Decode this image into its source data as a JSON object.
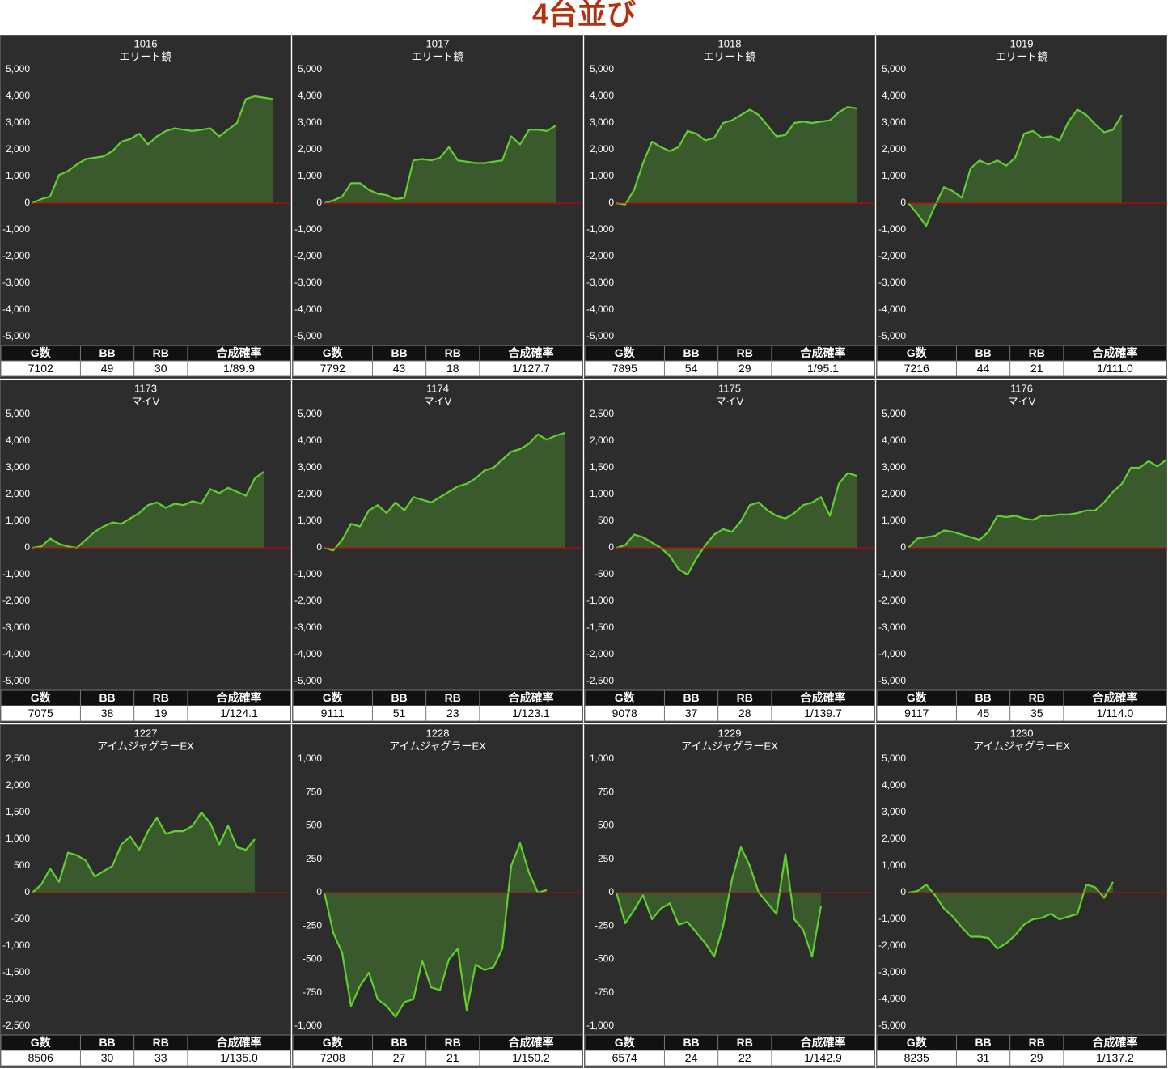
{
  "title": "4台並び",
  "chart_data": [
    {
      "type": "area",
      "title": "1016",
      "subtitle": "エリート鏡",
      "color": "#5fd12e",
      "zero_line_color": "#e00000",
      "grid": false,
      "ylim": [
        -5000,
        5000
      ],
      "yticks": [
        {
          "value": 5000,
          "label": "5,000"
        },
        {
          "value": 4000,
          "label": "4,000"
        },
        {
          "value": 3000,
          "label": "3,000"
        },
        {
          "value": 2000,
          "label": "2,000"
        },
        {
          "value": 1000,
          "label": "1,000"
        },
        0,
        {
          "value": -1000,
          "label": "-1,000"
        },
        {
          "value": -2000,
          "label": "-2,000"
        },
        {
          "value": -3000,
          "label": "-3,000"
        },
        {
          "value": -4000,
          "label": "-4,000"
        },
        {
          "value": -5000,
          "label": "-5,000"
        }
      ],
      "values": [
        0,
        150,
        250,
        1050,
        1200,
        1450,
        1650,
        1700,
        1750,
        1950,
        2300,
        2400,
        2600,
        2200,
        2500,
        2700,
        2800,
        2750,
        2700,
        2750,
        2800,
        2500,
        2750,
        3000,
        3900,
        4000,
        3950,
        3900
      ],
      "table": {
        "header": [
          "G数",
          "BB",
          "RB",
          "合成確率"
        ],
        "row": [
          7102,
          49,
          30,
          "1/89.9"
        ]
      }
    },
    {
      "type": "area",
      "title": "1017",
      "subtitle": "エリート鏡",
      "color": "#5fd12e",
      "zero_line_color": "#e00000",
      "grid": false,
      "ylim": [
        -5000,
        5000
      ],
      "yticks": [
        {
          "value": 5000,
          "label": "5,000"
        },
        {
          "value": 4000,
          "label": "4,000"
        },
        {
          "value": 3000,
          "label": "3,000"
        },
        {
          "value": 2000,
          "label": "2,000"
        },
        {
          "value": 1000,
          "label": "1,000"
        },
        0,
        {
          "value": -1000,
          "label": "-1,000"
        },
        {
          "value": -2000,
          "label": "-2,000"
        },
        {
          "value": -3000,
          "label": "-3,000"
        },
        {
          "value": -4000,
          "label": "-4,000"
        },
        {
          "value": -5000,
          "label": "-5,000"
        }
      ],
      "values": [
        0,
        100,
        250,
        750,
        750,
        500,
        350,
        300,
        150,
        200,
        1600,
        1650,
        1600,
        1700,
        2100,
        1600,
        1550,
        1500,
        1500,
        1550,
        1600,
        2500,
        2200,
        2750,
        2750,
        2700,
        2900
      ],
      "table": {
        "header": [
          "G数",
          "BB",
          "RB",
          "合成確率"
        ],
        "row": [
          7792,
          43,
          18,
          "1/127.7"
        ]
      }
    },
    {
      "type": "area",
      "title": "1018",
      "subtitle": "エリート鏡",
      "color": "#5fd12e",
      "zero_line_color": "#e00000",
      "grid": false,
      "ylim": [
        -5000,
        5000
      ],
      "yticks": [
        {
          "value": 5000,
          "label": "5,000"
        },
        {
          "value": 4000,
          "label": "4,000"
        },
        {
          "value": 3000,
          "label": "3,000"
        },
        {
          "value": 2000,
          "label": "2,000"
        },
        {
          "value": 1000,
          "label": "1,000"
        },
        0,
        {
          "value": -1000,
          "label": "-1,000"
        },
        {
          "value": -2000,
          "label": "-2,000"
        },
        {
          "value": -3000,
          "label": "-3,000"
        },
        {
          "value": -4000,
          "label": "-4,000"
        },
        {
          "value": -5000,
          "label": "-5,000"
        }
      ],
      "values": [
        0,
        -50,
        500,
        1500,
        2300,
        2100,
        1950,
        2100,
        2700,
        2600,
        2350,
        2450,
        3000,
        3100,
        3300,
        3500,
        3300,
        2900,
        2500,
        2550,
        3000,
        3050,
        3000,
        3050,
        3100,
        3400,
        3600,
        3550
      ],
      "table": {
        "header": [
          "G数",
          "BB",
          "RB",
          "合成確率"
        ],
        "row": [
          7895,
          54,
          29,
          "1/95.1"
        ]
      }
    },
    {
      "type": "area",
      "title": "1019",
      "subtitle": "エリート鏡",
      "color": "#5fd12e",
      "zero_line_color": "#e00000",
      "grid": false,
      "ylim": [
        -5000,
        5000
      ],
      "yticks": [
        {
          "value": 5000,
          "label": "5,000"
        },
        {
          "value": 4000,
          "label": "4,000"
        },
        {
          "value": 3000,
          "label": "3,000"
        },
        {
          "value": 2000,
          "label": "2,000"
        },
        {
          "value": 1000,
          "label": "1,000"
        },
        0,
        {
          "value": -1000,
          "label": "-1,000"
        },
        {
          "value": -2000,
          "label": "-2,000"
        },
        {
          "value": -3000,
          "label": "-3,000"
        },
        {
          "value": -4000,
          "label": "-4,000"
        },
        {
          "value": -5000,
          "label": "-5,000"
        }
      ],
      "values": [
        0,
        -400,
        -850,
        -100,
        600,
        450,
        200,
        1300,
        1600,
        1450,
        1600,
        1400,
        1700,
        2600,
        2700,
        2450,
        2500,
        2350,
        3050,
        3500,
        3300,
        2950,
        2650,
        2750,
        3300
      ],
      "table": {
        "header": [
          "G数",
          "BB",
          "RB",
          "合成確率"
        ],
        "row": [
          7216,
          44,
          21,
          "1/111.0"
        ]
      }
    },
    {
      "type": "area",
      "title": "1173",
      "subtitle": "マイV",
      "color": "#5fd12e",
      "zero_line_color": "#e00000",
      "grid": false,
      "ylim": [
        -5000,
        5000
      ],
      "yticks": [
        {
          "value": 5000,
          "label": "5,000"
        },
        {
          "value": 4000,
          "label": "4,000"
        },
        {
          "value": 3000,
          "label": "3,000"
        },
        {
          "value": 2000,
          "label": "2,000"
        },
        {
          "value": 1000,
          "label": "1,000"
        },
        0,
        {
          "value": -1000,
          "label": "-1,000"
        },
        {
          "value": -2000,
          "label": "-2,000"
        },
        {
          "value": -3000,
          "label": "-3,000"
        },
        {
          "value": -4000,
          "label": "-4,000"
        },
        {
          "value": -5000,
          "label": "-5,000"
        }
      ],
      "values": [
        0,
        50,
        350,
        150,
        50,
        0,
        300,
        600,
        800,
        950,
        900,
        1100,
        1300,
        1600,
        1700,
        1500,
        1650,
        1600,
        1750,
        1650,
        2200,
        2050,
        2250,
        2100,
        1950,
        2600,
        2850
      ],
      "table": {
        "header": [
          "G数",
          "BB",
          "RB",
          "合成確率"
        ],
        "row": [
          7075,
          38,
          19,
          "1/124.1"
        ]
      }
    },
    {
      "type": "area",
      "title": "1174",
      "subtitle": "マイV",
      "color": "#5fd12e",
      "zero_line_color": "#e00000",
      "grid": false,
      "ylim": [
        -5000,
        5000
      ],
      "yticks": [
        {
          "value": 5000,
          "label": "5,000"
        },
        {
          "value": 4000,
          "label": "4,000"
        },
        {
          "value": 3000,
          "label": "3,000"
        },
        {
          "value": 2000,
          "label": "2,000"
        },
        {
          "value": 1000,
          "label": "1,000"
        },
        0,
        {
          "value": -1000,
          "label": "-1,000"
        },
        {
          "value": -2000,
          "label": "-2,000"
        },
        {
          "value": -3000,
          "label": "-3,000"
        },
        {
          "value": -4000,
          "label": "-4,000"
        },
        {
          "value": -5000,
          "label": "-5,000"
        }
      ],
      "values": [
        0,
        -100,
        300,
        900,
        800,
        1400,
        1600,
        1300,
        1700,
        1400,
        1900,
        1800,
        1700,
        1900,
        2100,
        2300,
        2400,
        2600,
        2900,
        3000,
        3300,
        3600,
        3700,
        3900,
        4250,
        4050,
        4200,
        4300
      ],
      "table": {
        "header": [
          "G数",
          "BB",
          "RB",
          "合成確率"
        ],
        "row": [
          9111,
          51,
          23,
          "1/123.1"
        ]
      }
    },
    {
      "type": "area",
      "title": "1175",
      "subtitle": "マイV",
      "color": "#5fd12e",
      "zero_line_color": "#e00000",
      "grid": false,
      "ylim": [
        -2500,
        2500
      ],
      "yticks": [
        {
          "value": 2500,
          "label": "2,500"
        },
        {
          "value": 2000,
          "label": "2,000"
        },
        {
          "value": 1500,
          "label": "1,500"
        },
        {
          "value": 1000,
          "label": "1,000"
        },
        500,
        0,
        -500,
        {
          "value": -1000,
          "label": "-1,000"
        },
        {
          "value": -1500,
          "label": "-1,500"
        },
        {
          "value": -2000,
          "label": "-2,000"
        },
        {
          "value": -2500,
          "label": "-2,500"
        }
      ],
      "values": [
        0,
        50,
        250,
        200,
        100,
        0,
        -150,
        -400,
        -500,
        -200,
        50,
        250,
        350,
        300,
        500,
        800,
        850,
        700,
        600,
        550,
        650,
        800,
        850,
        950,
        600,
        1200,
        1400,
        1350
      ],
      "table": {
        "header": [
          "G数",
          "BB",
          "RB",
          "合成確率"
        ],
        "row": [
          9078,
          37,
          28,
          "1/139.7"
        ]
      }
    },
    {
      "type": "area",
      "title": "1176",
      "subtitle": "マイV",
      "color": "#5fd12e",
      "zero_line_color": "#e00000",
      "grid": false,
      "ylim": [
        -5000,
        5000
      ],
      "yticks": [
        {
          "value": 5000,
          "label": "5,000"
        },
        {
          "value": 4000,
          "label": "4,000"
        },
        {
          "value": 3000,
          "label": "3,000"
        },
        {
          "value": 2000,
          "label": "2,000"
        },
        {
          "value": 1000,
          "label": "1,000"
        },
        0,
        {
          "value": -1000,
          "label": "-1,000"
        },
        {
          "value": -2000,
          "label": "-2,000"
        },
        {
          "value": -3000,
          "label": "-3,000"
        },
        {
          "value": -4000,
          "label": "-4,000"
        },
        {
          "value": -5000,
          "label": "-5,000"
        }
      ],
      "values": [
        0,
        350,
        400,
        450,
        650,
        600,
        500,
        400,
        300,
        600,
        1200,
        1150,
        1200,
        1100,
        1050,
        1200,
        1200,
        1250,
        1250,
        1300,
        1400,
        1400,
        1700,
        2100,
        2400,
        3000,
        3000,
        3250,
        3050,
        3300
      ],
      "table": {
        "header": [
          "G数",
          "BB",
          "RB",
          "合成確率"
        ],
        "row": [
          9117,
          45,
          35,
          "1/114.0"
        ]
      }
    },
    {
      "type": "area",
      "title": "1227",
      "subtitle": "アイムジャグラーEX",
      "color": "#5fd12e",
      "zero_line_color": "#e00000",
      "grid": false,
      "ylim": [
        -2500,
        2500
      ],
      "yticks": [
        {
          "value": 2500,
          "label": "2,500"
        },
        {
          "value": 2000,
          "label": "2,000"
        },
        {
          "value": 1500,
          "label": "1,500"
        },
        {
          "value": 1000,
          "label": "1,000"
        },
        500,
        0,
        -500,
        {
          "value": -1000,
          "label": "-1,000"
        },
        {
          "value": -1500,
          "label": "-1,500"
        },
        {
          "value": -2000,
          "label": "-2,000"
        },
        {
          "value": -2500,
          "label": "-2,500"
        }
      ],
      "values": [
        0,
        150,
        450,
        200,
        750,
        700,
        600,
        300,
        400,
        500,
        900,
        1050,
        800,
        1150,
        1400,
        1100,
        1150,
        1150,
        1250,
        1500,
        1300,
        900,
        1250,
        850,
        800,
        1000
      ],
      "table": {
        "header": [
          "G数",
          "BB",
          "RB",
          "合成確率"
        ],
        "row": [
          8506,
          30,
          33,
          "1/135.0"
        ]
      }
    },
    {
      "type": "area",
      "title": "1228",
      "subtitle": "アイムジャグラーEX",
      "color": "#5fd12e",
      "zero_line_color": "#e00000",
      "grid": false,
      "ylim": [
        -1000,
        1000
      ],
      "yticks": [
        {
          "value": 1000,
          "label": "1,000"
        },
        750,
        500,
        250,
        0,
        -250,
        -500,
        -750,
        {
          "value": -1000,
          "label": "-1,000"
        }
      ],
      "values": [
        0,
        -300,
        -450,
        -850,
        -700,
        -600,
        -800,
        -850,
        -930,
        -820,
        -800,
        -510,
        -710,
        -730,
        -500,
        -420,
        -880,
        -540,
        -580,
        -560,
        -420,
        200,
        370,
        150,
        0,
        20
      ],
      "table": {
        "header": [
          "G数",
          "BB",
          "RB",
          "合成確率"
        ],
        "row": [
          7208,
          27,
          21,
          "1/150.2"
        ]
      }
    },
    {
      "type": "area",
      "title": "1229",
      "subtitle": "アイムジャグラーEX",
      "color": "#5fd12e",
      "zero_line_color": "#e00000",
      "grid": false,
      "ylim": [
        -1000,
        1000
      ],
      "yticks": [
        {
          "value": 1000,
          "label": "1,000"
        },
        750,
        500,
        250,
        0,
        -250,
        -500,
        -750,
        {
          "value": -1000,
          "label": "-1,000"
        }
      ],
      "values": [
        0,
        -230,
        -130,
        -20,
        -200,
        -120,
        -80,
        -240,
        -220,
        -300,
        -380,
        -480,
        -250,
        100,
        340,
        200,
        0,
        -80,
        -160,
        290,
        -200,
        -280,
        -480,
        -100
      ],
      "table": {
        "header": [
          "G数",
          "BB",
          "RB",
          "合成確率"
        ],
        "row": [
          6574,
          24,
          22,
          "1/142.9"
        ]
      }
    },
    {
      "type": "area",
      "title": "1230",
      "subtitle": "アイムジャグラーEX",
      "color": "#5fd12e",
      "zero_line_color": "#e00000",
      "grid": false,
      "ylim": [
        -5000,
        5000
      ],
      "yticks": [
        {
          "value": 5000,
          "label": "5,000"
        },
        {
          "value": 4000,
          "label": "4,000"
        },
        {
          "value": 3000,
          "label": "3,000"
        },
        {
          "value": 2000,
          "label": "2,000"
        },
        {
          "value": 1000,
          "label": "1,000"
        },
        0,
        {
          "value": -1000,
          "label": "-1,000"
        },
        {
          "value": -2000,
          "label": "-2,000"
        },
        {
          "value": -3000,
          "label": "-3,000"
        },
        {
          "value": -4000,
          "label": "-4,000"
        },
        {
          "value": -5000,
          "label": "-5,000"
        }
      ],
      "values": [
        0,
        50,
        300,
        -100,
        -600,
        -900,
        -1300,
        -1650,
        -1650,
        -1700,
        -2100,
        -1900,
        -1600,
        -1200,
        -1000,
        -950,
        -800,
        -1000,
        -900,
        -800,
        300,
        200,
        -200,
        400
      ],
      "table": {
        "header": [
          "G数",
          "BB",
          "RB",
          "合成確率"
        ],
        "row": [
          8235,
          31,
          29,
          "1/137.2"
        ]
      }
    }
  ]
}
